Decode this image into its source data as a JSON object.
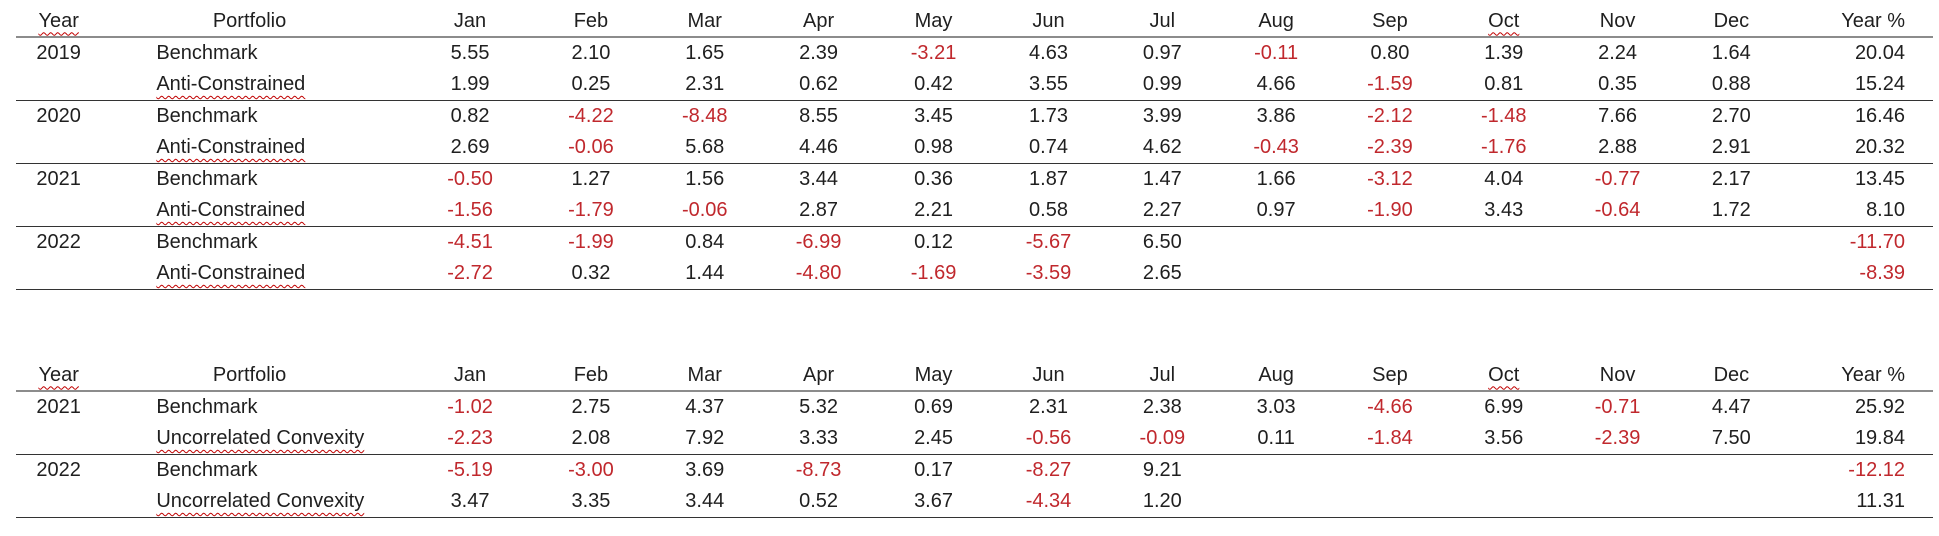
{
  "headers": [
    "Year",
    "Portfolio",
    "Jan",
    "Feb",
    "Mar",
    "Apr",
    "May",
    "Jun",
    "Jul",
    "Aug",
    "Sep",
    "Oct",
    "Nov",
    "Dec",
    "Year %"
  ],
  "neg_color": "#c0282d",
  "tables": [
    {
      "rows": [
        {
          "year": "2019",
          "portfolio": "Benchmark",
          "values": [
            "5.55",
            "2.10",
            "1.65",
            "2.39",
            "-3.21",
            "4.63",
            "0.97",
            "-0.11",
            "0.80",
            "1.39",
            "2.24",
            "1.64"
          ],
          "ytd": "20.04"
        },
        {
          "year": "",
          "portfolio": "Anti-Constrained",
          "values": [
            "1.99",
            "0.25",
            "2.31",
            "0.62",
            "0.42",
            "3.55",
            "0.99",
            "4.66",
            "-1.59",
            "0.81",
            "0.35",
            "0.88"
          ],
          "ytd": "15.24"
        },
        {
          "year": "2020",
          "portfolio": "Benchmark",
          "values": [
            "0.82",
            "-4.22",
            "-8.48",
            "8.55",
            "3.45",
            "1.73",
            "3.99",
            "3.86",
            "-2.12",
            "-1.48",
            "7.66",
            "2.70"
          ],
          "ytd": "16.46"
        },
        {
          "year": "",
          "portfolio": "Anti-Constrained",
          "values": [
            "2.69",
            "-0.06",
            "5.68",
            "4.46",
            "0.98",
            "0.74",
            "4.62",
            "-0.43",
            "-2.39",
            "-1.76",
            "2.88",
            "2.91"
          ],
          "ytd": "20.32"
        },
        {
          "year": "2021",
          "portfolio": "Benchmark",
          "values": [
            "-0.50",
            "1.27",
            "1.56",
            "3.44",
            "0.36",
            "1.87",
            "1.47",
            "1.66",
            "-3.12",
            "4.04",
            "-0.77",
            "2.17"
          ],
          "ytd": "13.45"
        },
        {
          "year": "",
          "portfolio": "Anti-Constrained",
          "values": [
            "-1.56",
            "-1.79",
            "-0.06",
            "2.87",
            "2.21",
            "0.58",
            "2.27",
            "0.97",
            "-1.90",
            "3.43",
            "-0.64",
            "1.72"
          ],
          "ytd": "8.10"
        },
        {
          "year": "2022",
          "portfolio": "Benchmark",
          "values": [
            "-4.51",
            "-1.99",
            "0.84",
            "-6.99",
            "0.12",
            "-5.67",
            "6.50",
            "",
            "",
            "",
            "",
            ""
          ],
          "ytd": "-11.70"
        },
        {
          "year": "",
          "portfolio": "Anti-Constrained",
          "values": [
            "-2.72",
            "0.32",
            "1.44",
            "-4.80",
            "-1.69",
            "-3.59",
            "2.65",
            "",
            "",
            "",
            "",
            ""
          ],
          "ytd": "-8.39"
        }
      ]
    },
    {
      "rows": [
        {
          "year": "2021",
          "portfolio": "Benchmark",
          "values": [
            "-1.02",
            "2.75",
            "4.37",
            "5.32",
            "0.69",
            "2.31",
            "2.38",
            "3.03",
            "-4.66",
            "6.99",
            "-0.71",
            "4.47"
          ],
          "ytd": "25.92"
        },
        {
          "year": "",
          "portfolio": "Uncorrelated Convexity",
          "values": [
            "-2.23",
            "2.08",
            "7.92",
            "3.33",
            "2.45",
            "-0.56",
            "-0.09",
            "0.11",
            "-1.84",
            "3.56",
            "-2.39",
            "7.50"
          ],
          "ytd": "19.84"
        },
        {
          "year": "2022",
          "portfolio": "Benchmark",
          "values": [
            "-5.19",
            "-3.00",
            "3.69",
            "-8.73",
            "0.17",
            "-8.27",
            "9.21",
            "",
            "",
            "",
            "",
            ""
          ],
          "ytd": "-12.12"
        },
        {
          "year": "",
          "portfolio": "Uncorrelated Convexity",
          "values": [
            "3.47",
            "3.35",
            "3.44",
            "0.52",
            "3.67",
            "-4.34",
            "1.20",
            "",
            "",
            "",
            "",
            ""
          ],
          "ytd": "11.31"
        }
      ]
    }
  ]
}
